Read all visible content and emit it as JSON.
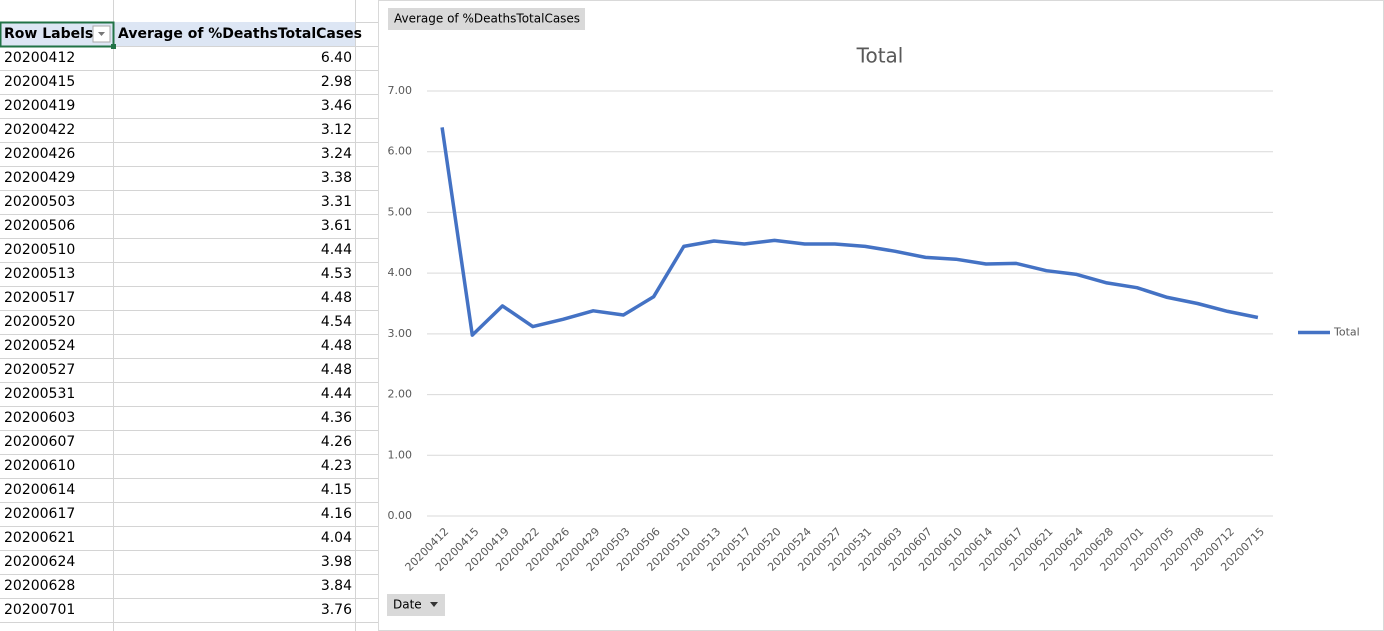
{
  "table": {
    "headers": [
      "Row Labels",
      "Average of %DeathsTotalCases"
    ],
    "rows": [
      [
        "20200412",
        "6.40"
      ],
      [
        "20200415",
        "2.98"
      ],
      [
        "20200419",
        "3.46"
      ],
      [
        "20200422",
        "3.12"
      ],
      [
        "20200426",
        "3.24"
      ],
      [
        "20200429",
        "3.38"
      ],
      [
        "20200503",
        "3.31"
      ],
      [
        "20200506",
        "3.61"
      ],
      [
        "20200510",
        "4.44"
      ],
      [
        "20200513",
        "4.53"
      ],
      [
        "20200517",
        "4.48"
      ],
      [
        "20200520",
        "4.54"
      ],
      [
        "20200524",
        "4.48"
      ],
      [
        "20200527",
        "4.48"
      ],
      [
        "20200531",
        "4.44"
      ],
      [
        "20200603",
        "4.36"
      ],
      [
        "20200607",
        "4.26"
      ],
      [
        "20200610",
        "4.23"
      ],
      [
        "20200614",
        "4.15"
      ],
      [
        "20200617",
        "4.16"
      ],
      [
        "20200621",
        "4.04"
      ],
      [
        "20200624",
        "3.98"
      ],
      [
        "20200628",
        "3.84"
      ],
      [
        "20200701",
        "3.76"
      ]
    ]
  },
  "chart_data": {
    "type": "line",
    "title": "Total",
    "value_button": "Average of %DeathsTotalCases",
    "axis_button": "Date",
    "categories": [
      "20200412",
      "20200415",
      "20200419",
      "20200422",
      "20200426",
      "20200429",
      "20200503",
      "20200506",
      "20200510",
      "20200513",
      "20200517",
      "20200520",
      "20200524",
      "20200527",
      "20200531",
      "20200603",
      "20200607",
      "20200610",
      "20200614",
      "20200617",
      "20200621",
      "20200624",
      "20200628",
      "20200701",
      "20200705",
      "20200708",
      "20200712",
      "20200715"
    ],
    "series": [
      {
        "name": "Total",
        "color": "#4472c4",
        "values": [
          6.4,
          2.98,
          3.46,
          3.12,
          3.24,
          3.38,
          3.31,
          3.61,
          4.44,
          4.53,
          4.48,
          4.54,
          4.48,
          4.48,
          4.44,
          4.36,
          4.26,
          4.23,
          4.15,
          4.16,
          4.04,
          3.98,
          3.84,
          3.76,
          3.6,
          3.5,
          3.37,
          3.27
        ]
      }
    ],
    "ylim": [
      0,
      7
    ],
    "yticks": [
      {
        "value": 0,
        "label": "0.00"
      },
      {
        "value": 1,
        "label": "1.00"
      },
      {
        "value": 2,
        "label": "2.00"
      },
      {
        "value": 3,
        "label": "3.00"
      },
      {
        "value": 4,
        "label": "4.00"
      },
      {
        "value": 5,
        "label": "5.00"
      },
      {
        "value": 6,
        "label": "6.00"
      },
      {
        "value": 7,
        "label": "7.00"
      }
    ],
    "grid": true,
    "legend": "right"
  }
}
